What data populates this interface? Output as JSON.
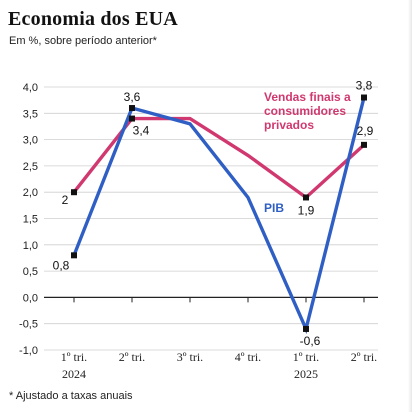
{
  "header": {
    "title": "Economia dos EUA",
    "subtitle": "Em %, sobre período anterior*"
  },
  "footnote": "* Ajustado a taxas anuais",
  "colors": {
    "pib": "#2f5fc4",
    "vendas": "#d0386f",
    "grid": "#cfcfcf",
    "axis": "#222222"
  },
  "chart_data": {
    "type": "line",
    "title": "Economia dos EUA",
    "subtitle": "Em %, sobre período anterior*",
    "categories": [
      "1º tri.",
      "2º tri.",
      "3º tri.",
      "4º tri.",
      "1º tri.",
      "2º tri."
    ],
    "year_labels": [
      "2024",
      "",
      "",
      "",
      "2025",
      ""
    ],
    "yticks": [
      "4,0",
      "3,5",
      "3,0",
      "2,5",
      "2,0",
      "1,5",
      "1,0",
      "0,5",
      "0,0",
      "-0,5",
      "-1,0"
    ],
    "ylim": [
      -1.0,
      4.0
    ],
    "grid": true,
    "series": [
      {
        "name": "PIB",
        "values": [
          0.8,
          3.6,
          3.3,
          1.9,
          -0.6,
          3.8
        ],
        "labels": [
          "0,8",
          "3,6",
          "",
          "",
          "-0,6",
          "3,8"
        ]
      },
      {
        "name": "Vendas finais a consumidores privados",
        "name_lines": [
          "Vendas finais a",
          "consumidores",
          "privados"
        ],
        "values": [
          2.0,
          3.4,
          3.4,
          2.7,
          1.9,
          2.9
        ],
        "labels": [
          "2",
          "3,4",
          "",
          "",
          "1,9",
          "2,9"
        ]
      }
    ]
  }
}
